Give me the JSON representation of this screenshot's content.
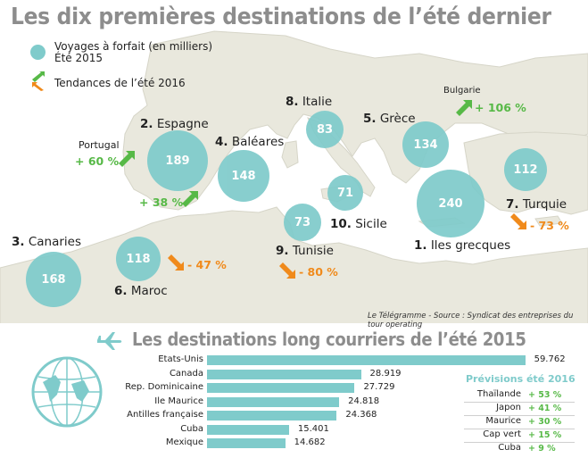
{
  "title": "Les dix premières destinations de l’été dernier",
  "legend": {
    "bubble_line1": "Voyages à forfait (en milliers)",
    "bubble_line2": "Été 2015",
    "trend_label": "Tendances de l’été 2016"
  },
  "source": "Le Télégramme - Source : Syndicat des entreprises du tour operating",
  "bar_title": "Les destinations long courriers de l’été 2015",
  "colors": {
    "bubble": "#7fcbcb",
    "up": "#57b947",
    "down": "#f08a1b",
    "sea": "#ffffff",
    "land": "#e9e8dd"
  },
  "icons": [
    "plane-icon",
    "globe-icon",
    "trend-up-arrow-icon",
    "trend-down-arrow-icon"
  ],
  "chart_data": [
    {
      "type": "bubble-map",
      "title": "Les dix premières destinations de l’été dernier",
      "series_name": "Voyages à forfait (en milliers) Été 2015",
      "destinations": [
        {
          "rank": "1.",
          "name": "Iles grecques",
          "value": 240
        },
        {
          "rank": "2.",
          "name": "Espagne",
          "value": 189
        },
        {
          "rank": "3.",
          "name": "Canaries",
          "value": 168
        },
        {
          "rank": "4.",
          "name": "Baléares",
          "value": 148
        },
        {
          "rank": "5.",
          "name": "Grèce",
          "value": 134
        },
        {
          "rank": "6.",
          "name": "Maroc",
          "value": 118
        },
        {
          "rank": "7.",
          "name": "Turquie",
          "value": 112
        },
        {
          "rank": "8.",
          "name": "Italie",
          "value": 83
        },
        {
          "rank": "9.",
          "name": "Tunisie",
          "value": 73
        },
        {
          "rank": "10.",
          "name": "Sicile",
          "value": 71
        }
      ],
      "trends_2016": [
        {
          "name": "Portugal",
          "value": "+ 60 %",
          "direction": "up"
        },
        {
          "name": "",
          "value": "+ 38 %",
          "direction": "up"
        },
        {
          "name": "",
          "value": "- 47 %",
          "direction": "down"
        },
        {
          "name": "Bulgarie",
          "value": "+ 106 %",
          "direction": "up"
        },
        {
          "name": "",
          "value": "- 73 %",
          "direction": "down"
        },
        {
          "name": "",
          "value": "- 80 %",
          "direction": "down"
        }
      ]
    },
    {
      "type": "bar",
      "title": "Les destinations long courriers de l’été 2015",
      "categories": [
        "Etats-Unis",
        "Canada",
        "Rep. Dominicaine",
        "Ile Maurice",
        "Antilles française",
        "Cuba",
        "Mexique"
      ],
      "values": [
        59.762,
        28.919,
        27.729,
        24.818,
        24.368,
        15.401,
        14.682
      ],
      "labels": [
        "59.762",
        "28.919",
        "27.729",
        "24.818",
        "24.368",
        "15.401",
        "14.682"
      ]
    },
    {
      "type": "table",
      "title": "Prévisions été 2016",
      "rows": [
        {
          "name": "Thaïlande",
          "value": "+ 53 %"
        },
        {
          "name": "Japon",
          "value": "+ 41 %"
        },
        {
          "name": "Maurice",
          "value": "+ 30 %"
        },
        {
          "name": "Cap vert",
          "value": "+ 15 %"
        },
        {
          "name": "Cuba",
          "value": "+ 9 %"
        }
      ]
    }
  ]
}
